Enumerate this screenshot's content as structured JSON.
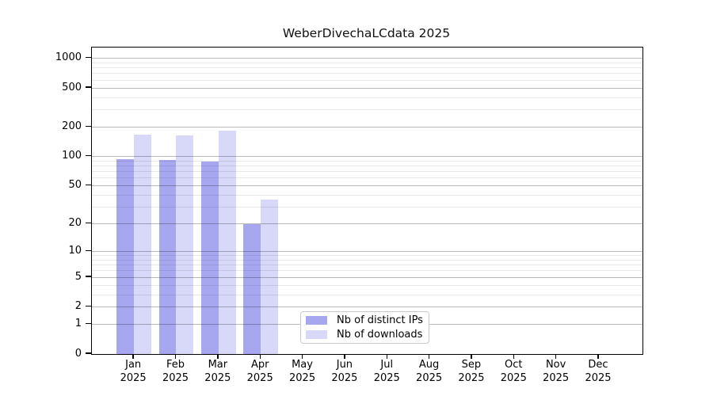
{
  "chart_data": {
    "type": "bar",
    "title": "WeberDivechaLCdata 2025",
    "categories": [
      "Jan 2025",
      "Feb 2025",
      "Mar 2025",
      "Apr 2025",
      "May 2025",
      "Jun 2025",
      "Jul 2025",
      "Aug 2025",
      "Sep 2025",
      "Oct 2025",
      "Nov 2025",
      "Dec 2025"
    ],
    "series": [
      {
        "name": "Nb of distinct IPs",
        "color": "#a7a7f0",
        "values": [
          94,
          92,
          89,
          20,
          0,
          0,
          0,
          0,
          0,
          0,
          0,
          0
        ]
      },
      {
        "name": "Nb of downloads",
        "color": "#d8d8f8",
        "values": [
          168,
          165,
          183,
          36,
          0,
          0,
          0,
          0,
          0,
          0,
          0,
          0
        ]
      }
    ],
    "xlabel": "",
    "ylabel": "",
    "y_ticks": [
      0,
      1,
      2,
      5,
      10,
      20,
      50,
      100,
      200,
      500,
      1000
    ],
    "ylim": [
      0,
      1290
    ],
    "y_scale": "log1p",
    "grid": "horizontal, major and minor, drawn over bars",
    "legend_position": "bottom center inside plot",
    "colors": {
      "axis": "#000000",
      "major_grid": "#bdbdbd",
      "minor_grid": "#e9e9e9",
      "background": "#ffffff"
    }
  }
}
